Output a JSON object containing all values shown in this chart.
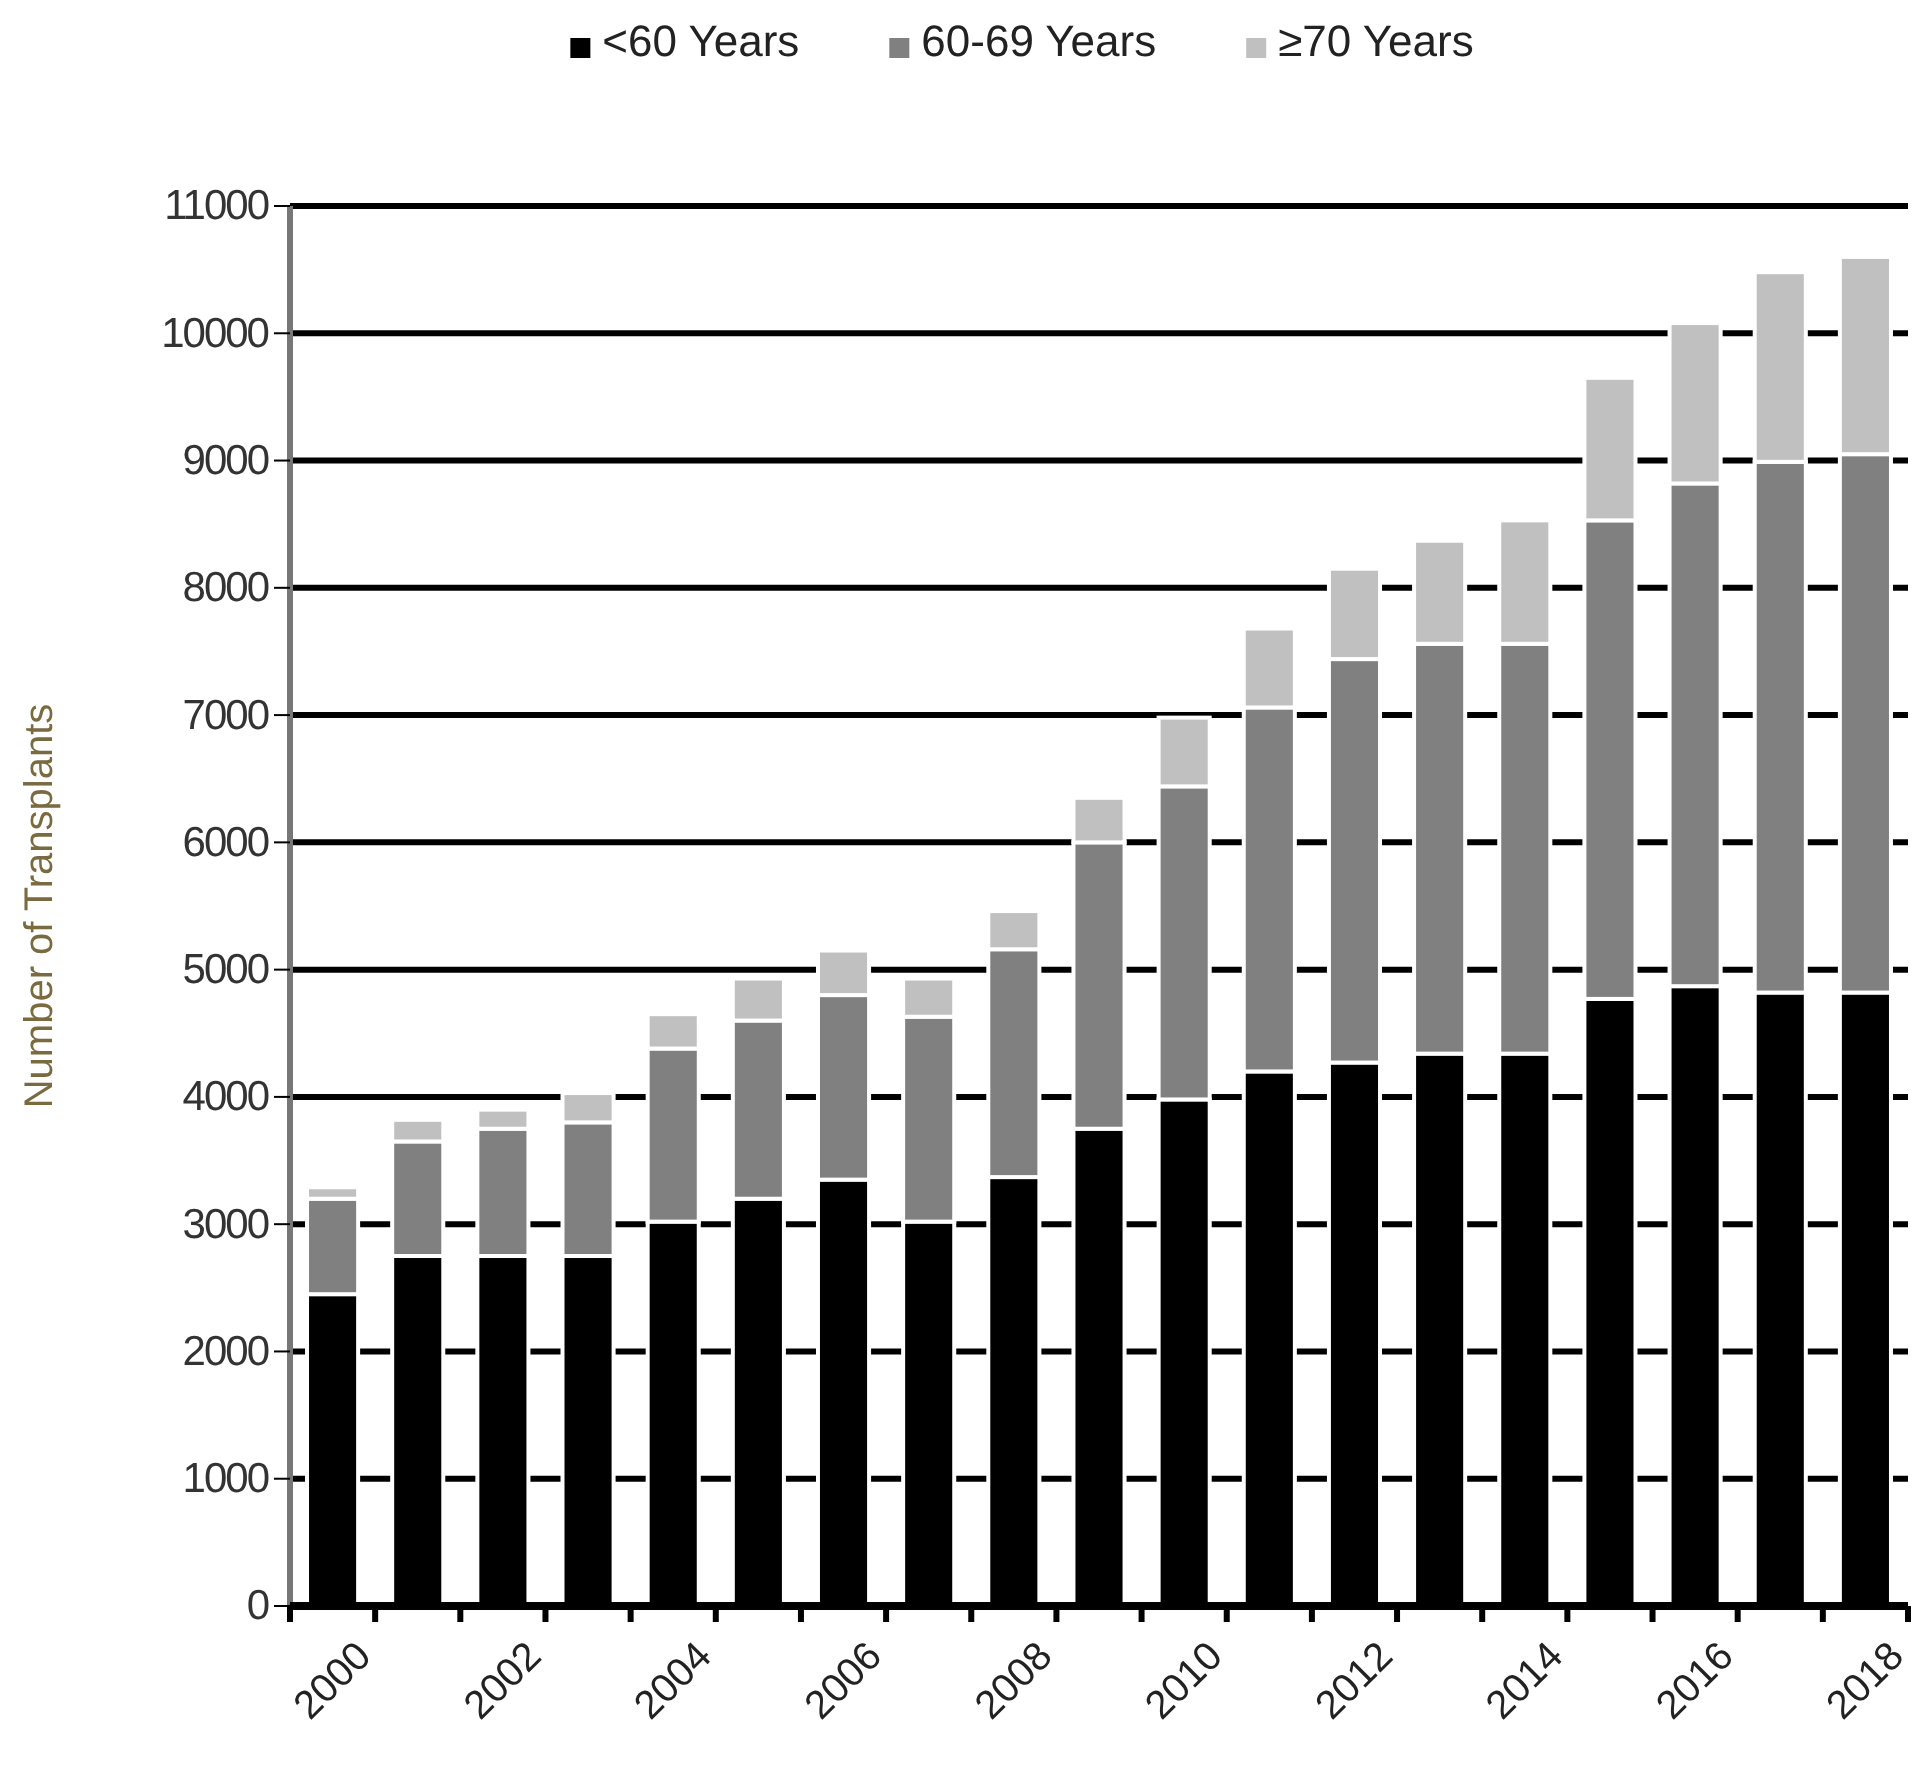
{
  "chart_data": {
    "type": "bar",
    "stacked": true,
    "ylabel": "Number of Transplants",
    "categories": [
      "2000",
      null,
      "2002",
      null,
      "2004",
      null,
      "2006",
      null,
      "2008",
      null,
      "2010",
      null,
      "2012",
      null,
      "2014",
      null,
      "2016",
      null,
      "2018"
    ],
    "series": [
      {
        "name": "<60 Years",
        "color": "#000000",
        "values": [
          2450,
          2750,
          2750,
          2750,
          3020,
          3200,
          3350,
          3020,
          3370,
          3750,
          3980,
          4200,
          4270,
          4340,
          4340,
          4770,
          4870,
          4820,
          4820
        ]
      },
      {
        "name": "60-69 Years",
        "color": "#808080",
        "values": [
          750,
          900,
          1000,
          1050,
          1360,
          1400,
          1450,
          1610,
          1790,
          2250,
          2460,
          2860,
          3170,
          3220,
          3220,
          3760,
          3950,
          4170,
          4230
        ]
      },
      {
        "name": "≥70 Years",
        "color": "#c0c0c0",
        "values": [
          90,
          170,
          150,
          230,
          270,
          330,
          350,
          300,
          300,
          350,
          540,
          620,
          710,
          810,
          970,
          1120,
          1260,
          1490,
          1550
        ]
      }
    ],
    "ylim": [
      0,
      11000
    ],
    "yticks": [
      0,
      1000,
      2000,
      3000,
      4000,
      5000,
      6000,
      7000,
      8000,
      9000,
      10000,
      11000
    ],
    "grid": "y",
    "legend": "top"
  }
}
